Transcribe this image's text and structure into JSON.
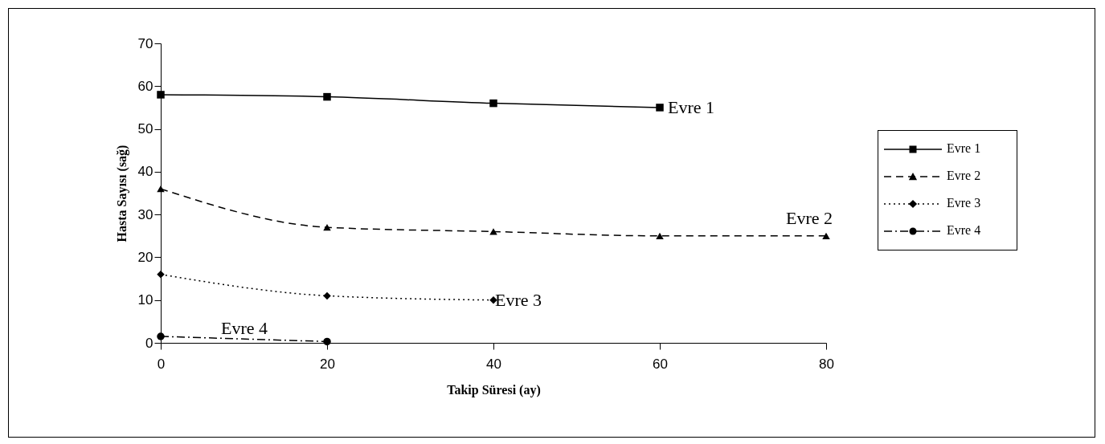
{
  "chart_data": {
    "type": "line",
    "xlabel": "Takip Süresi (ay)",
    "ylabel": "Hasta Sayısı (sağ)",
    "xlim": [
      0,
      80
    ],
    "xticks": [
      0,
      20,
      40,
      60,
      80
    ],
    "ylim": [
      0,
      70
    ],
    "yticks": [
      0,
      10,
      20,
      30,
      40,
      50,
      60,
      70
    ],
    "grid": false,
    "legend": "right",
    "series": [
      {
        "name": "Evre 1",
        "color": "#000000",
        "marker": "square",
        "line_style": "solid",
        "x": [
          0,
          20,
          40,
          60
        ],
        "values": [
          58,
          57.5,
          56,
          55
        ]
      },
      {
        "name": "Evre 2",
        "color": "#000000",
        "marker": "triangle",
        "line_style": "dashed",
        "x": [
          0,
          20,
          40,
          60,
          80
        ],
        "values": [
          36,
          27,
          26,
          25,
          25
        ]
      },
      {
        "name": "Evre 3",
        "color": "#000000",
        "marker": "diamond",
        "line_style": "dotted",
        "x": [
          0,
          20,
          40
        ],
        "values": [
          16,
          11,
          10
        ]
      },
      {
        "name": "Evre 4",
        "color": "#000000",
        "marker": "circle",
        "line_style": "dashdot",
        "x": [
          0,
          20
        ],
        "values": [
          1.5,
          0.3
        ]
      }
    ],
    "annotations": [
      "Evre 1",
      "Evre 2",
      "Evre 3",
      "Evre 4"
    ]
  }
}
